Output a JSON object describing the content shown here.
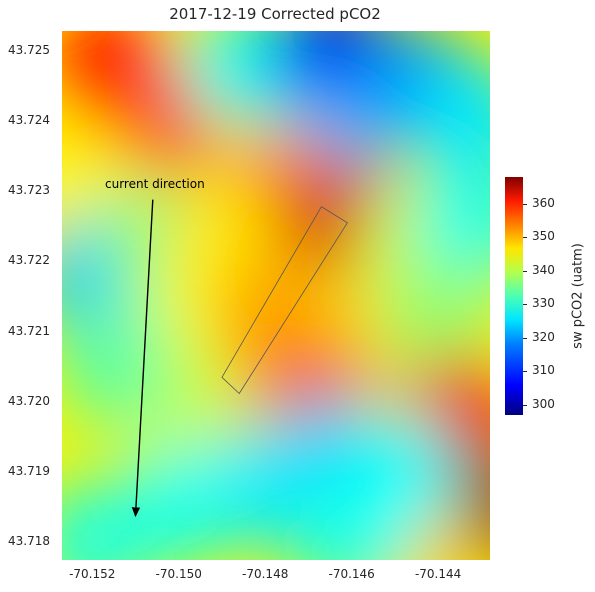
{
  "chart_data": {
    "type": "heatmap",
    "title": "2017-12-19 Corrected pCO2",
    "xlim": [
      -70.1527,
      -70.1428
    ],
    "ylim": [
      43.71775,
      43.72528
    ],
    "x_ticks": [
      "-70.152",
      "-70.150",
      "-70.148",
      "-70.146",
      "-70.144"
    ],
    "x_tick_values": [
      -70.152,
      -70.15,
      -70.148,
      -70.146,
      -70.144
    ],
    "y_ticks": [
      "43.725",
      "43.724",
      "43.723",
      "43.722",
      "43.721",
      "43.720",
      "43.719",
      "43.718"
    ],
    "y_tick_values": [
      43.725,
      43.724,
      43.723,
      43.722,
      43.721,
      43.72,
      43.719,
      43.718
    ],
    "colorbar": {
      "label": "sw pCO2 (uatm)",
      "range": [
        297,
        368
      ],
      "ticks": [
        "300",
        "310",
        "320",
        "330",
        "340",
        "350",
        "360"
      ],
      "tick_values": [
        300,
        310,
        320,
        330,
        340,
        350,
        360
      ],
      "colormap": "jet"
    },
    "field_samples": [
      {
        "x": -70.1515,
        "y": 43.7248,
        "value": 358
      },
      {
        "x": -70.1505,
        "y": 43.724,
        "value": 355
      },
      {
        "x": -70.1485,
        "y": 43.7248,
        "value": 325
      },
      {
        "x": -70.1465,
        "y": 43.725,
        "value": 305
      },
      {
        "x": -70.1445,
        "y": 43.7245,
        "value": 316
      },
      {
        "x": -70.1432,
        "y": 43.724,
        "value": 322
      },
      {
        "x": -70.1465,
        "y": 43.7237,
        "value": 318
      },
      {
        "x": -70.1475,
        "y": 43.723,
        "value": 350
      },
      {
        "x": -70.1462,
        "y": 43.7225,
        "value": 362
      },
      {
        "x": -70.1445,
        "y": 43.7222,
        "value": 338
      },
      {
        "x": -70.1432,
        "y": 43.7225,
        "value": 325
      },
      {
        "x": -70.1522,
        "y": 43.723,
        "value": 342
      },
      {
        "x": -70.152,
        "y": 43.7218,
        "value": 320
      },
      {
        "x": -70.1505,
        "y": 43.7223,
        "value": 332
      },
      {
        "x": -70.149,
        "y": 43.7222,
        "value": 343
      },
      {
        "x": -70.1495,
        "y": 43.721,
        "value": 341
      },
      {
        "x": -70.1478,
        "y": 43.7212,
        "value": 348
      },
      {
        "x": -70.146,
        "y": 43.721,
        "value": 344
      },
      {
        "x": -70.144,
        "y": 43.7212,
        "value": 334
      },
      {
        "x": -70.147,
        "y": 43.7202,
        "value": 352
      },
      {
        "x": -70.15,
        "y": 43.72,
        "value": 338
      },
      {
        "x": -70.1515,
        "y": 43.7205,
        "value": 330
      },
      {
        "x": -70.1435,
        "y": 43.7198,
        "value": 360
      },
      {
        "x": -70.143,
        "y": 43.7185,
        "value": 368
      },
      {
        "x": -70.1445,
        "y": 43.718,
        "value": 345
      },
      {
        "x": -70.1465,
        "y": 43.7192,
        "value": 318
      },
      {
        "x": -70.148,
        "y": 43.7188,
        "value": 322
      },
      {
        "x": -70.15,
        "y": 43.7185,
        "value": 325
      },
      {
        "x": -70.152,
        "y": 43.718,
        "value": 326
      },
      {
        "x": -70.146,
        "y": 43.718,
        "value": 326
      },
      {
        "x": -70.145,
        "y": 43.719,
        "value": 324
      }
    ],
    "annotation": {
      "text": "current direction",
      "arrow_from": {
        "x": -70.1506,
        "y": 43.72288
      },
      "arrow_to": {
        "x": -70.151,
        "y": 43.71838
      }
    },
    "track_box": {
      "corners": [
        {
          "x": -70.149,
          "y": 43.72035
        },
        {
          "x": -70.1467,
          "y": 43.72278
        },
        {
          "x": -70.1461,
          "y": 43.72255
        },
        {
          "x": -70.1486,
          "y": 43.72012
        }
      ]
    }
  }
}
